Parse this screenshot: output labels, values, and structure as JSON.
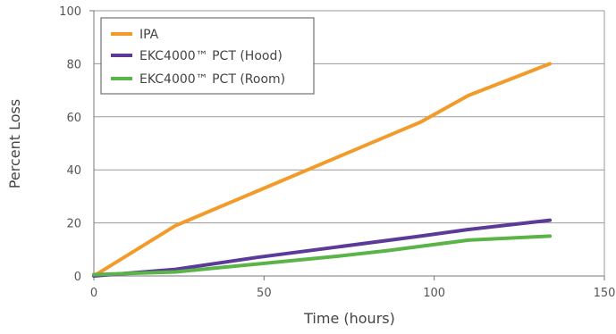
{
  "chart_data": {
    "type": "line",
    "title": "",
    "xlabel": "Time (hours)",
    "ylabel": "Percent Loss",
    "xlim": [
      0,
      150
    ],
    "ylim": [
      0,
      100
    ],
    "x_ticks": [
      0,
      50,
      100,
      150
    ],
    "y_ticks": [
      0,
      20,
      40,
      60,
      80,
      100
    ],
    "grid": "horizontal",
    "legend_position": "top-left",
    "series": [
      {
        "name": "IPA",
        "color": "#f39b2a",
        "x": [
          0,
          24,
          48,
          72,
          96,
          110,
          134
        ],
        "y": [
          0,
          19,
          32,
          45,
          58,
          68,
          80
        ]
      },
      {
        "name": "EKC4000™ PCT (Hood)",
        "color": "#5b3a98",
        "x": [
          0,
          24,
          48,
          72,
          96,
          110,
          134
        ],
        "y": [
          0,
          2.5,
          7,
          11,
          15,
          17.5,
          21
        ]
      },
      {
        "name": "EKC4000™ PCT (Room)",
        "color": "#5ab447",
        "x": [
          0,
          24,
          48,
          72,
          86,
          110,
          134
        ],
        "y": [
          0.5,
          1.5,
          4.5,
          7.5,
          9.5,
          13.5,
          15
        ]
      }
    ]
  }
}
